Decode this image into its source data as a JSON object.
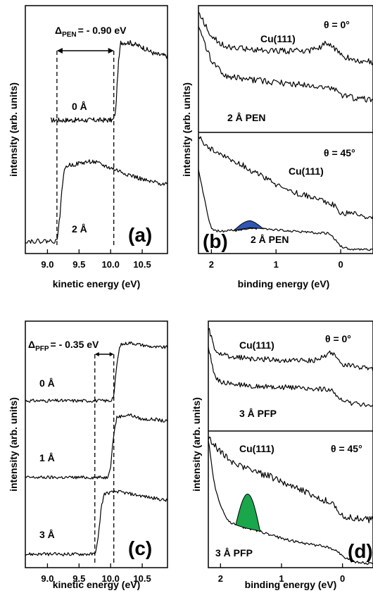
{
  "chart_data": [
    {
      "panel": "(a)",
      "type": "line",
      "annotation_prefix": "Δ",
      "annotation_sub": "PEN",
      "annotation_value": "= - 0.90 eV",
      "xlabel": "kinetic energy (eV)",
      "ylabel": "intensity (arb. units)",
      "xlim": [
        8.65,
        10.9
      ],
      "xticks": [
        "9.0",
        "9.5",
        "10.0",
        "10.5"
      ],
      "xtick_values": [
        9.0,
        9.5,
        10.0,
        10.5
      ],
      "ylim": [
        0,
        100
      ],
      "edges": [
        9.15,
        10.05
      ],
      "series": [
        {
          "name": "0 Å",
          "x": [
            9.05,
            10.04,
            10.08,
            10.12,
            10.16,
            10.3,
            10.5,
            10.7,
            10.9
          ],
          "y": [
            56,
            56,
            60,
            80,
            90,
            90,
            88,
            85,
            84
          ]
        },
        {
          "name": "2 Å",
          "x": [
            8.65,
            9.15,
            9.2,
            9.25,
            9.3,
            9.5,
            9.7,
            10.0,
            10.3,
            10.6,
            10.9
          ],
          "y": [
            3,
            3,
            15,
            32,
            36,
            37,
            38,
            35,
            32,
            29,
            28
          ]
        }
      ]
    },
    {
      "panel": "(b)",
      "type": "line",
      "xlabel": "binding energy (eV)",
      "ylabel": "intensity (arb. units)",
      "xlim": [
        2.2,
        -0.5
      ],
      "xticks": [
        "2",
        "1",
        "0"
      ],
      "xtick_values": [
        2,
        1,
        0
      ],
      "ylim": [
        0,
        100
      ],
      "subpanels": [
        {
          "angle": "θ = 0°",
          "series": [
            {
              "name": "Cu(111)",
              "x": [
                2.2,
                2.0,
                1.8,
                1.5,
                1.0,
                0.5,
                0.3,
                0.2,
                0.1,
                0.0,
                -0.3,
                -0.5
              ],
              "y": [
                98,
                78,
                70,
                68,
                66,
                66,
                70,
                73,
                69,
                62,
                58,
                57
              ]
            },
            {
              "name": "2 Å PEN",
              "x": [
                2.2,
                2.0,
                1.8,
                1.5,
                1.0,
                0.5,
                0.3,
                0.1,
                0.0,
                -0.2,
                -0.5
              ],
              "y": [
                85,
                58,
                46,
                43,
                40,
                38,
                37,
                35,
                30,
                27,
                26
              ]
            }
          ]
        },
        {
          "angle": "θ = 45°",
          "series": [
            {
              "name": "Cu(111)",
              "x": [
                2.2,
                2.0,
                1.8,
                1.5,
                1.2,
                1.0,
                0.8,
                0.5,
                0.3,
                0.1,
                0.0,
                -0.5
              ],
              "y": [
                98,
                88,
                83,
                74,
                64,
                58,
                52,
                48,
                45,
                40,
                34,
                30
              ]
            },
            {
              "name": "2 Å PEN",
              "x": [
                2.2,
                2.05,
                2.0,
                1.9,
                1.8,
                1.6,
                1.4,
                1.2,
                1.0,
                0.5,
                0.2,
                0.1,
                0.0,
                -0.1,
                -0.5
              ],
              "y": [
                70,
                30,
                20,
                18,
                18,
                19,
                21,
                20,
                19,
                17,
                16,
                12,
                5,
                3,
                2
              ]
            }
          ],
          "peak": {
            "color": "#2f55b5",
            "x": [
              1.2,
              1.65
            ],
            "height": 6
          }
        }
      ]
    },
    {
      "panel": "(c)",
      "type": "line",
      "annotation_prefix": "Δ",
      "annotation_sub": "PFP",
      "annotation_value": "= - 0.35 eV",
      "xlabel": "kinetic energy (eV)",
      "ylabel": "intensity (arb. units)",
      "xlim": [
        8.65,
        10.9
      ],
      "xticks": [
        "9.0",
        "9.5",
        "10.0",
        "10.5"
      ],
      "xtick_values": [
        9.0,
        9.5,
        10.0,
        10.5
      ],
      "ylim": [
        0,
        100
      ],
      "edges": [
        9.75,
        10.05
      ],
      "series": [
        {
          "name": "0 Å",
          "x": [
            8.65,
            10.0,
            10.05,
            10.1,
            10.15,
            10.3,
            10.5,
            10.7,
            10.9
          ],
          "y": [
            70,
            70,
            72,
            86,
            94,
            95,
            94,
            93,
            93
          ]
        },
        {
          "name": "1 Å",
          "x": [
            8.65,
            9.95,
            10.0,
            10.05,
            10.1,
            10.3,
            10.5,
            10.7,
            10.9
          ],
          "y": [
            37,
            37,
            42,
            56,
            63,
            64,
            62,
            62,
            61
          ]
        },
        {
          "name": "3 Å",
          "x": [
            8.65,
            9.75,
            9.8,
            9.85,
            9.9,
            10.1,
            10.3,
            10.5,
            10.7,
            10.9
          ],
          "y": [
            4,
            4,
            10,
            24,
            30,
            31,
            30,
            29,
            28,
            27
          ]
        }
      ]
    },
    {
      "panel": "(d)",
      "type": "line",
      "xlabel": "binding energy (eV)",
      "ylabel": "intensity (arb. units)",
      "xlim": [
        2.2,
        -0.5
      ],
      "xticks": [
        "2",
        "1",
        "0"
      ],
      "xtick_values": [
        2,
        1,
        0
      ],
      "ylim": [
        0,
        100
      ],
      "subpanels": [
        {
          "angle": "θ = 0°",
          "series": [
            {
              "name": "Cu(111)",
              "x": [
                2.2,
                2.1,
                2.0,
                1.8,
                1.5,
                1.0,
                0.5,
                0.3,
                0.2,
                0.1,
                0.0,
                -0.3,
                -0.5
              ],
              "y": [
                98,
                78,
                72,
                70,
                68,
                67,
                66,
                70,
                74,
                70,
                63,
                60,
                58
              ]
            },
            {
              "name": "3 Å PFP",
              "x": [
                2.2,
                2.1,
                2.0,
                1.8,
                1.5,
                1.0,
                0.5,
                0.2,
                0.1,
                0.0,
                -0.2,
                -0.5
              ],
              "y": [
                80,
                52,
                45,
                44,
                42,
                41,
                39,
                38,
                33,
                27,
                25,
                24
              ]
            }
          ]
        },
        {
          "angle": "θ = 45°",
          "series": [
            {
              "name": "Cu(111)",
              "x": [
                2.2,
                2.0,
                1.8,
                1.5,
                1.2,
                1.0,
                0.7,
                0.4,
                0.2,
                0.1,
                0.0,
                -0.2,
                -0.5
              ],
              "y": [
                97,
                86,
                78,
                72,
                68,
                64,
                58,
                52,
                48,
                44,
                38,
                36,
                35
              ]
            },
            {
              "name": "3 Å PFP",
              "x": [
                2.2,
                2.1,
                2.0,
                1.9,
                1.8,
                1.6,
                1.4,
                1.2,
                1.0,
                0.7,
                0.3,
                0.1,
                0.0,
                -0.2,
                -0.5
              ],
              "y": [
                95,
                62,
                45,
                36,
                32,
                29,
                27,
                24,
                21,
                18,
                15,
                12,
                7,
                3,
                2
              ]
            }
          ],
          "peak": {
            "color": "#1aa64a",
            "x": [
              1.35,
              1.75
            ],
            "height": 26
          }
        }
      ]
    }
  ]
}
